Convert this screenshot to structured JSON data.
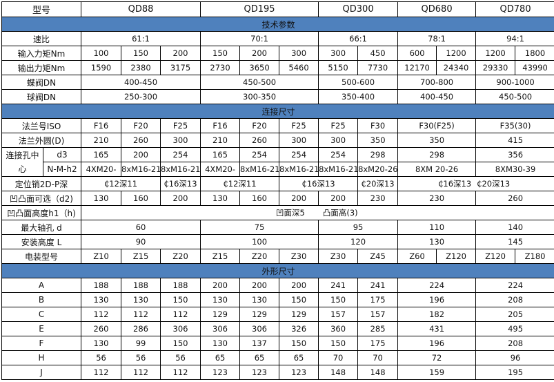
{
  "symbol": "₵",
  "colors": {
    "section_bg": "#4f81bd",
    "border": "#000000"
  },
  "table": {
    "rows": [
      {
        "type": "hdr",
        "label": "型号",
        "cells": [
          [
            "QD88",
            3
          ],
          [
            "QD195",
            3
          ],
          [
            "QD300",
            2
          ],
          [
            "QD680",
            2
          ],
          [
            "QD780",
            2
          ]
        ]
      },
      {
        "type": "section",
        "text": "技术参数"
      },
      {
        "label": "速比",
        "cells": [
          [
            "61:1",
            3
          ],
          [
            "70:1",
            3
          ],
          [
            "66:1",
            2
          ],
          [
            "78:1",
            2
          ],
          [
            "94:1",
            2
          ]
        ]
      },
      {
        "label": "输入力矩Nm",
        "cells": [
          [
            "100",
            1
          ],
          [
            "150",
            1
          ],
          [
            "200",
            1
          ],
          [
            "150",
            1
          ],
          [
            "200",
            1
          ],
          [
            "300",
            1
          ],
          [
            "300",
            1
          ],
          [
            "450",
            1
          ],
          [
            "600",
            1
          ],
          [
            "1200",
            1
          ],
          [
            "1200",
            1
          ],
          [
            "1800",
            1
          ]
        ]
      },
      {
        "label": "输出力矩Nm",
        "cells": [
          [
            "1590",
            1
          ],
          [
            "2380",
            1
          ],
          [
            "3175",
            1
          ],
          [
            "2730",
            1
          ],
          [
            "3650",
            1
          ],
          [
            "5460",
            1
          ],
          [
            "5150",
            1
          ],
          [
            "7730",
            1
          ],
          [
            "12170",
            1
          ],
          [
            "24340",
            1
          ],
          [
            "29330",
            1
          ],
          [
            "43990",
            1
          ]
        ]
      },
      {
        "label": "蝶阀DN",
        "cells": [
          [
            "400-450",
            3
          ],
          [
            "450-500",
            3
          ],
          [
            "500-600",
            2
          ],
          [
            "700-800",
            2
          ],
          [
            "900-1000",
            2
          ]
        ]
      },
      {
        "label": "球阀DN",
        "cells": [
          [
            "250-300",
            3
          ],
          [
            "300-350",
            3
          ],
          [
            "350-400",
            2
          ],
          [
            "400-450",
            2
          ],
          [
            "450-500",
            2
          ]
        ]
      },
      {
        "type": "section",
        "text": "连接尺寸"
      },
      {
        "label": "法兰号ISO",
        "cells": [
          [
            "F16",
            1
          ],
          [
            "F20",
            1
          ],
          [
            "F25",
            1
          ],
          [
            "F16",
            1
          ],
          [
            "F20",
            1
          ],
          [
            "F25",
            1
          ],
          [
            "F25",
            1
          ],
          [
            "F30",
            1
          ],
          [
            "F30(F25)",
            2
          ],
          [
            "F35(30)",
            2
          ]
        ]
      },
      {
        "label": "法兰外圆(D)",
        "cells": [
          [
            "210",
            1
          ],
          [
            "260",
            1
          ],
          [
            "300",
            1
          ],
          [
            "210",
            1
          ],
          [
            "260",
            1
          ],
          [
            "300",
            1
          ],
          [
            "300",
            1
          ],
          [
            "350",
            1
          ],
          [
            "350",
            2
          ],
          [
            "415",
            2
          ]
        ]
      },
      {
        "group": "连接孔中心",
        "sublabel": "d3",
        "cells": [
          [
            "165",
            1
          ],
          [
            "200",
            1
          ],
          [
            "254",
            1
          ],
          [
            "165",
            1
          ],
          [
            "254",
            1
          ],
          [
            "254",
            1
          ],
          [
            "254",
            1
          ],
          [
            "298",
            1
          ],
          [
            "298",
            2
          ],
          [
            "356",
            2
          ]
        ]
      },
      {
        "sublabel": "N-M-h2",
        "cells": [
          [
            "4XM20-",
            1
          ],
          [
            "8xM16-21",
            1
          ],
          [
            "8xM16-21",
            1
          ],
          [
            "4XM20-",
            1
          ],
          [
            "8xM16-21",
            1
          ],
          [
            "8xM16-21",
            1
          ],
          [
            "8xM16-21",
            1
          ],
          [
            "8xM20-26",
            1
          ],
          [
            "8XM 20-26",
            2
          ],
          [
            "8XM30-39",
            2
          ]
        ]
      },
      {
        "label": "定位销2D-P深",
        "cells": [
          [
            "₵12深11",
            2
          ],
          [
            "₵16深13",
            1
          ],
          [
            "₵12深11",
            2
          ],
          [
            "₵16深13",
            2
          ],
          [
            "₵20深13",
            1
          ]
        ],
        "multi": [
          "₵16深13",
          "₵20深13"
        ]
      },
      {
        "label": "凹凸面可选（d2)",
        "cells": [
          [
            "130",
            1
          ],
          [
            "160",
            1
          ],
          [
            "200",
            1
          ],
          [
            "130",
            1
          ],
          [
            "160",
            1
          ],
          [
            "200",
            1
          ],
          [
            "200",
            1
          ],
          [
            "230",
            1
          ],
          [
            "230",
            2
          ],
          [
            "260",
            2
          ]
        ]
      },
      {
        "label": "凹凸面高度h1（h)",
        "note": [
          "凹面深5",
          "凸面高(3)"
        ]
      },
      {
        "label": "最大轴孔 d",
        "cells": [
          [
            "60",
            3
          ],
          [
            "75",
            3
          ],
          [
            "95",
            2
          ],
          [
            "110",
            2
          ],
          [
            "140",
            2
          ]
        ]
      },
      {
        "label": "安装高度 L",
        "cells": [
          [
            "90",
            3
          ],
          [
            "100",
            3
          ],
          [
            "120",
            2
          ],
          [
            "130",
            2
          ],
          [
            "145",
            2
          ]
        ]
      },
      {
        "label": "电装型号",
        "cells": [
          [
            "Z10",
            1
          ],
          [
            "Z15",
            1
          ],
          [
            "Z20",
            1
          ],
          [
            "Z15",
            1
          ],
          [
            "Z20",
            1
          ],
          [
            "Z30",
            1
          ],
          [
            "Z30",
            1
          ],
          [
            "Z45",
            1
          ],
          [
            "Z60",
            1
          ],
          [
            "Z120",
            1
          ],
          [
            "Z120",
            1
          ],
          [
            "Z180",
            1
          ]
        ]
      },
      {
        "type": "section",
        "text": "外形尺寸"
      },
      {
        "label": "A",
        "cells": [
          [
            "188",
            1
          ],
          [
            "188",
            1
          ],
          [
            "188",
            1
          ],
          [
            "200",
            1
          ],
          [
            "200",
            1
          ],
          [
            "200",
            1
          ],
          [
            "241",
            1
          ],
          [
            "241",
            1
          ],
          [
            "224",
            2
          ],
          [
            "224",
            2
          ]
        ]
      },
      {
        "label": "B",
        "cells": [
          [
            "130",
            1
          ],
          [
            "130",
            1
          ],
          [
            "150",
            1
          ],
          [
            "130",
            1
          ],
          [
            "130",
            1
          ],
          [
            "150",
            1
          ],
          [
            "150",
            1
          ],
          [
            "175",
            1
          ],
          [
            "196",
            2
          ],
          [
            "208",
            2
          ]
        ]
      },
      {
        "label": "C",
        "cells": [
          [
            "112",
            1
          ],
          [
            "112",
            1
          ],
          [
            "112",
            1
          ],
          [
            "129",
            1
          ],
          [
            "129",
            1
          ],
          [
            "129",
            1
          ],
          [
            "157",
            1
          ],
          [
            "157",
            1
          ],
          [
            "182",
            2
          ],
          [
            "205",
            2
          ]
        ]
      },
      {
        "label": "E",
        "cells": [
          [
            "260",
            1
          ],
          [
            "286",
            1
          ],
          [
            "306",
            1
          ],
          [
            "306",
            1
          ],
          [
            "306",
            1
          ],
          [
            "326",
            1
          ],
          [
            "360",
            1
          ],
          [
            "285",
            1
          ],
          [
            "431",
            2
          ],
          [
            "495",
            2
          ]
        ]
      },
      {
        "label": "F",
        "cells": [
          [
            "130",
            1
          ],
          [
            "99",
            1
          ],
          [
            "150",
            1
          ],
          [
            "130",
            1
          ],
          [
            "137",
            1
          ],
          [
            "150",
            1
          ],
          [
            "150",
            1
          ],
          [
            "175",
            1
          ],
          [
            "196",
            2
          ],
          [
            "208",
            2
          ]
        ]
      },
      {
        "label": "H",
        "cells": [
          [
            "56",
            1
          ],
          [
            "56",
            1
          ],
          [
            "56",
            1
          ],
          [
            "65",
            1
          ],
          [
            "65",
            1
          ],
          [
            "65",
            1
          ],
          [
            "70",
            1
          ],
          [
            "70",
            1
          ],
          [
            "72",
            2
          ],
          [
            "96",
            2
          ]
        ]
      },
      {
        "label": "J",
        "cells": [
          [
            "112",
            1
          ],
          [
            "112",
            1
          ],
          [
            "112",
            1
          ],
          [
            "123",
            1
          ],
          [
            "123",
            1
          ],
          [
            "123",
            1
          ],
          [
            "148",
            1
          ],
          [
            "148",
            1
          ],
          [
            "159",
            2
          ],
          [
            "195",
            2
          ]
        ]
      }
    ]
  }
}
